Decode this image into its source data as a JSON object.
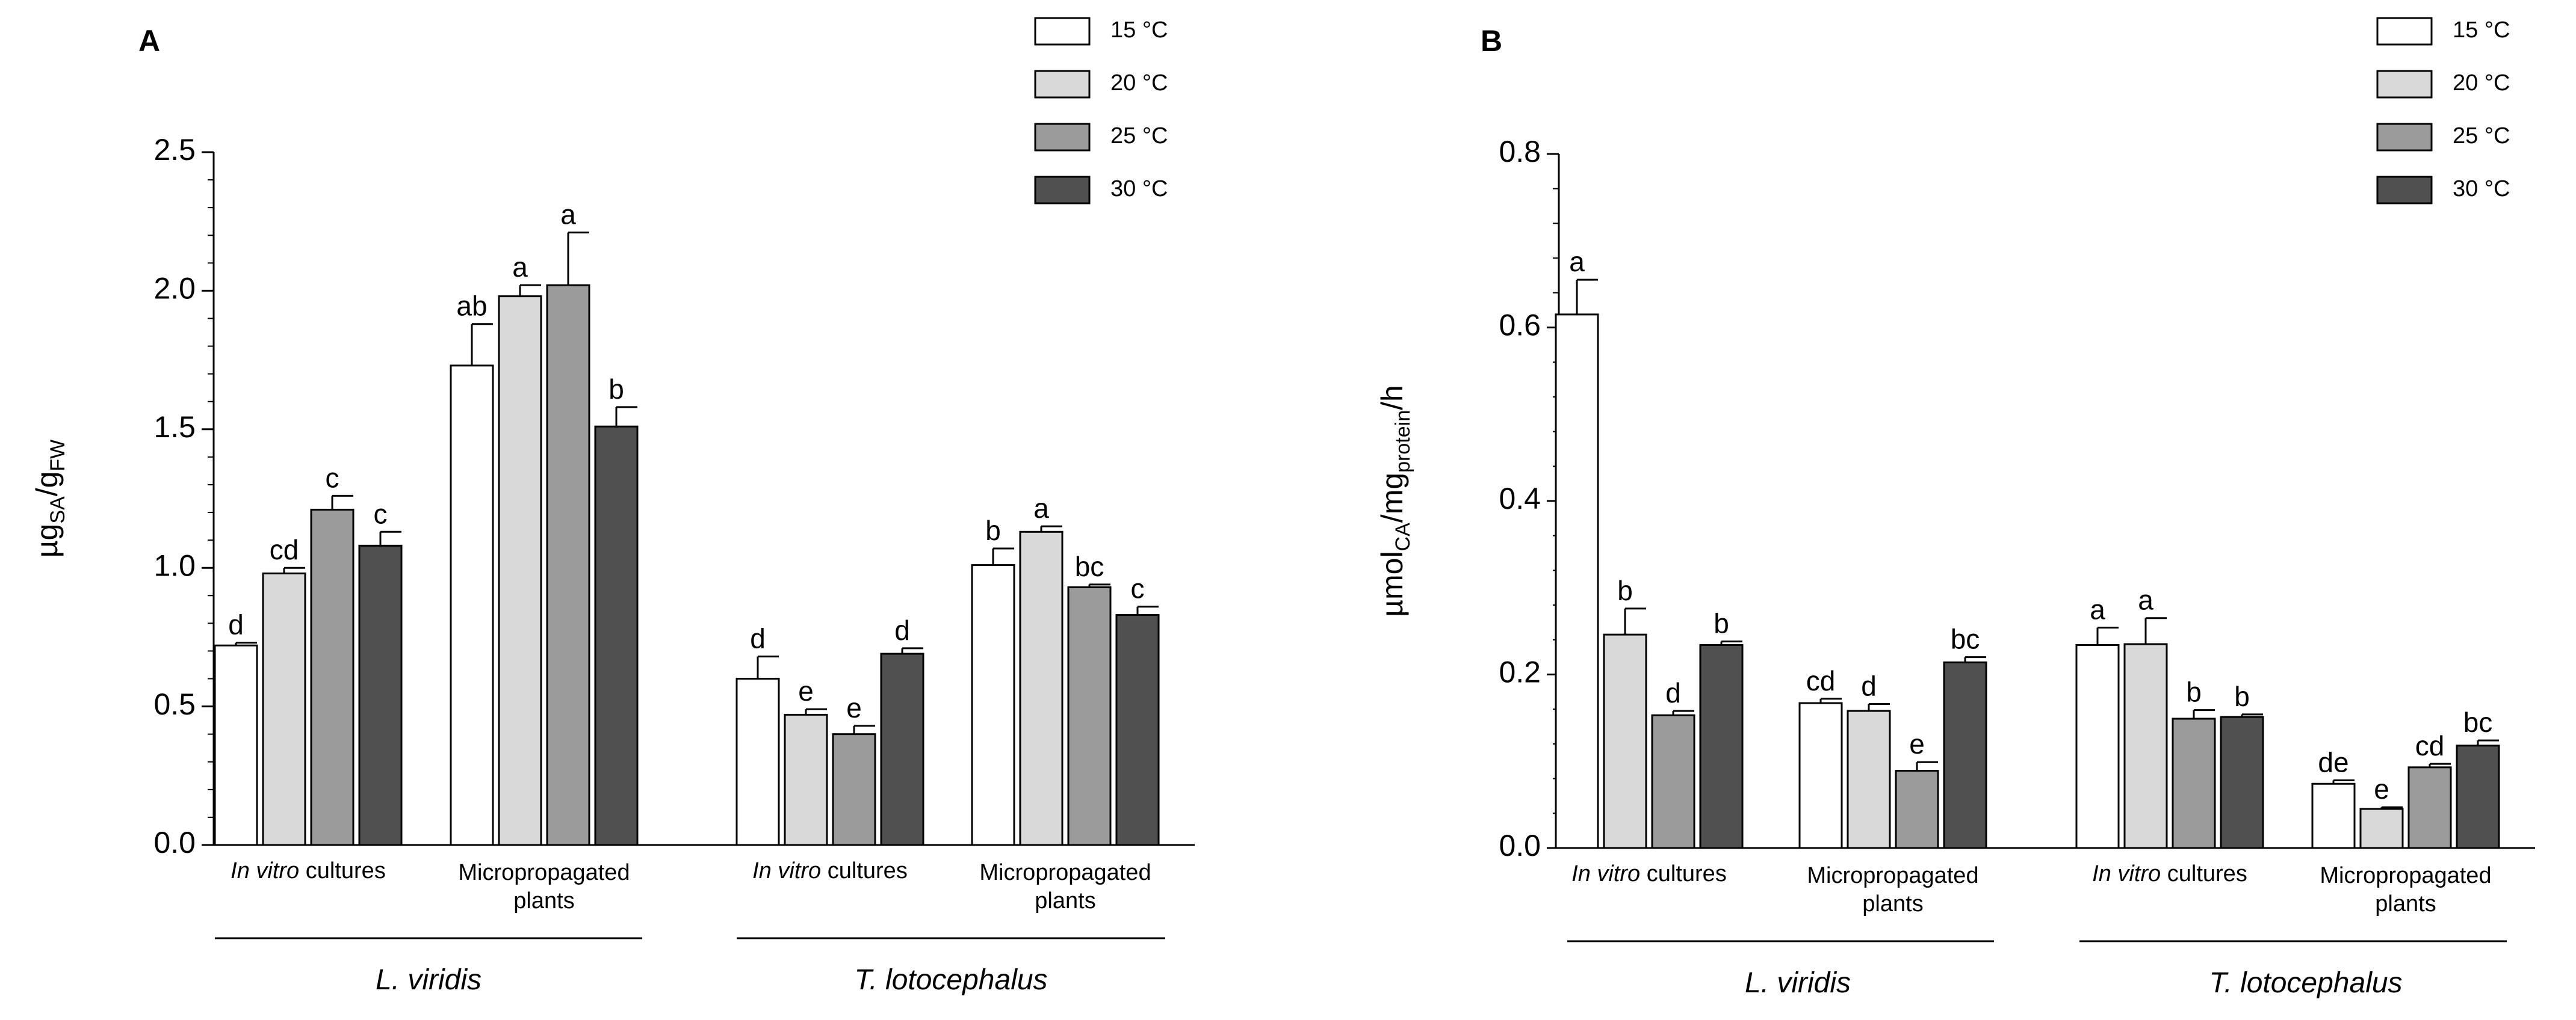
{
  "legend": {
    "labels": [
      "15 °C",
      "20 °C",
      "25 °C",
      "30 °C"
    ],
    "colors": [
      "#ffffff",
      "#d9d9d9",
      "#9b9b9b",
      "#505050"
    ]
  },
  "chart_data": [
    {
      "type": "bar",
      "panel_label": "A",
      "ylabel": {
        "base": "µg",
        "sub1": "SA",
        "mid": "/g",
        "sub2": "FW"
      },
      "ylim": [
        0,
        2.5
      ],
      "yticks": [
        "0.0",
        "0.5",
        "1.0",
        "1.5",
        "2.0",
        "2.5"
      ],
      "categories": [
        {
          "italic": "In vitro",
          "text": " cultures",
          "line2": ""
        },
        {
          "italic": "",
          "text": "Micropropagated",
          "line2": "plants"
        },
        {
          "italic": "In vitro",
          "text": " cultures",
          "line2": ""
        },
        {
          "italic": "",
          "text": "Micropropagated",
          "line2": "plants"
        }
      ],
      "groups": [
        "L. viridis",
        "T. lotocephalus"
      ],
      "series": [
        {
          "name": "15 °C",
          "values": [
            0.72,
            1.73,
            0.6,
            1.01
          ],
          "errors": [
            0.01,
            0.15,
            0.08,
            0.06
          ],
          "labels": [
            "d",
            "ab",
            "d",
            "b"
          ]
        },
        {
          "name": "20 °C",
          "values": [
            0.98,
            1.98,
            0.47,
            1.13
          ],
          "errors": [
            0.02,
            0.04,
            0.02,
            0.02
          ],
          "labels": [
            "cd",
            "a",
            "e",
            "a"
          ]
        },
        {
          "name": "25 °C",
          "values": [
            1.21,
            2.02,
            0.4,
            0.93
          ],
          "errors": [
            0.05,
            0.19,
            0.03,
            0.01
          ],
          "labels": [
            "c",
            "a",
            "e",
            "bc"
          ]
        },
        {
          "name": "30 °C",
          "values": [
            1.08,
            1.51,
            0.69,
            0.83
          ],
          "errors": [
            0.05,
            0.07,
            0.02,
            0.03
          ],
          "labels": [
            "c",
            "b",
            "d",
            "c"
          ]
        }
      ]
    },
    {
      "type": "bar",
      "panel_label": "B",
      "ylabel": {
        "base": "µmol",
        "sub1": "CA",
        "mid": "/mg",
        "sub2": "protein",
        "tail": "/h"
      },
      "ylim": [
        0,
        0.8
      ],
      "yticks": [
        "0.0",
        "0.2",
        "0.4",
        "0.6",
        "0.8"
      ],
      "categories": [
        {
          "italic": "In vitro",
          "text": " cultures",
          "line2": ""
        },
        {
          "italic": "",
          "text": "Micropropagated",
          "line2": "plants"
        },
        {
          "italic": "In vitro",
          "text": " cultures",
          "line2": ""
        },
        {
          "italic": "",
          "text": "Micropropagated",
          "line2": "plants"
        }
      ],
      "groups": [
        "L. viridis",
        "T. lotocephalus"
      ],
      "series": [
        {
          "name": "15 °C",
          "values": [
            0.615,
            0.167,
            0.234,
            0.074
          ],
          "errors": [
            0.04,
            0.005,
            0.02,
            0.004
          ],
          "labels": [
            "a",
            "cd",
            "a",
            "de"
          ]
        },
        {
          "name": "20 °C",
          "values": [
            0.246,
            0.158,
            0.235,
            0.045
          ],
          "errors": [
            0.03,
            0.008,
            0.03,
            0.002
          ],
          "labels": [
            "b",
            "d",
            "a",
            "e"
          ]
        },
        {
          "name": "25 °C",
          "values": [
            0.153,
            0.089,
            0.149,
            0.093
          ],
          "errors": [
            0.005,
            0.01,
            0.01,
            0.004
          ],
          "labels": [
            "d",
            "e",
            "b",
            "cd"
          ]
        },
        {
          "name": "30 °C",
          "values": [
            0.234,
            0.214,
            0.151,
            0.118
          ],
          "errors": [
            0.004,
            0.006,
            0.003,
            0.006
          ],
          "labels": [
            "b",
            "bc",
            "b",
            "bc"
          ]
        }
      ]
    }
  ]
}
